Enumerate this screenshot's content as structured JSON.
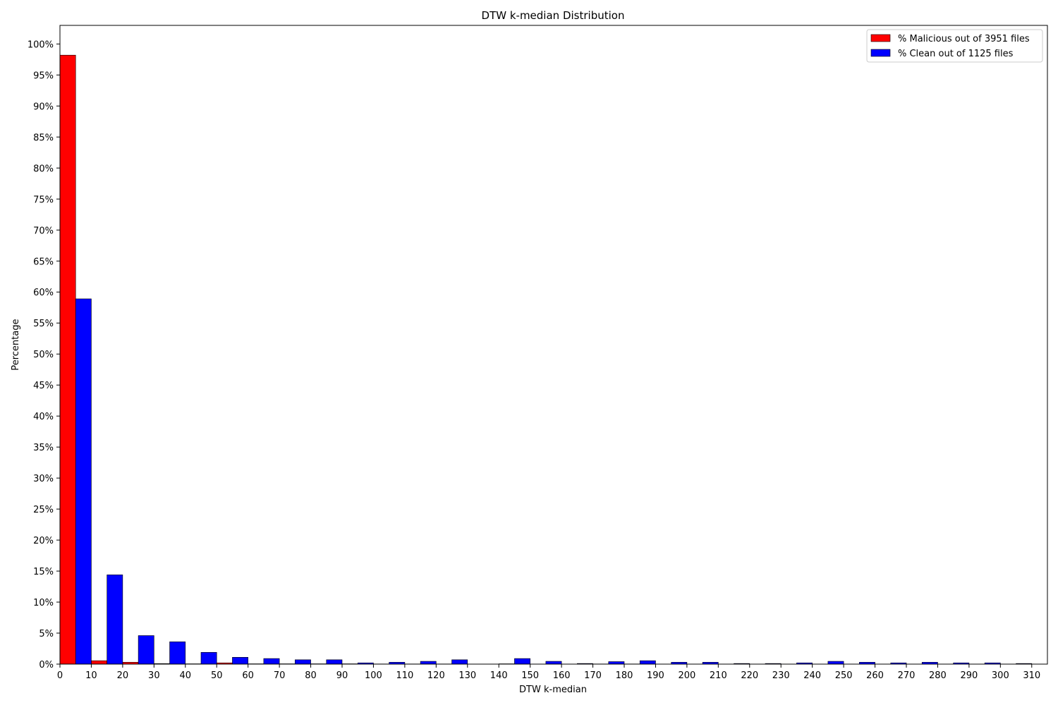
{
  "chart_data": {
    "type": "bar",
    "title": "DTW k-median Distribution",
    "xlabel": "DTW k-median",
    "ylabel": "Percentage",
    "xlim": [
      0,
      315
    ],
    "ylim": [
      0,
      103
    ],
    "x_ticks": [
      0,
      10,
      20,
      30,
      40,
      50,
      60,
      70,
      80,
      90,
      100,
      110,
      120,
      130,
      140,
      150,
      160,
      170,
      180,
      190,
      200,
      210,
      220,
      230,
      240,
      250,
      260,
      270,
      280,
      290,
      300,
      310
    ],
    "y_ticks": [
      0,
      5,
      10,
      15,
      20,
      25,
      30,
      35,
      40,
      45,
      50,
      55,
      60,
      65,
      70,
      75,
      80,
      85,
      90,
      95,
      100
    ],
    "y_tick_suffix": "%",
    "bin_width": 10,
    "bin_starts": [
      0,
      10,
      20,
      30,
      40,
      50,
      60,
      70,
      80,
      90,
      100,
      110,
      120,
      130,
      140,
      150,
      160,
      170,
      180,
      190,
      200,
      210,
      220,
      230,
      240,
      250,
      260,
      270,
      280,
      290,
      300
    ],
    "legend_position": "top-right",
    "grid": false,
    "series": [
      {
        "name": "% Malicious out of 3951 files",
        "color": "#ff0000",
        "values": [
          98.2,
          0.55,
          0.3,
          0.08,
          0.05,
          0.2,
          0.05,
          0.05,
          0.05,
          0.05,
          0.03,
          0.03,
          0.03,
          0.0,
          0.05,
          0.0,
          0.0,
          0.03,
          0.03,
          0.0,
          0.0,
          0.0,
          0.0,
          0.0,
          0.0,
          0.0,
          0.0,
          0.0,
          0.0,
          0.0,
          0.0
        ]
      },
      {
        "name": "% Clean out of 1125 files",
        "color": "#0000ff",
        "values": [
          58.9,
          14.4,
          4.6,
          3.6,
          1.9,
          1.1,
          0.9,
          0.7,
          0.7,
          0.2,
          0.3,
          0.45,
          0.7,
          0.0,
          0.9,
          0.45,
          0.1,
          0.4,
          0.55,
          0.3,
          0.3,
          0.1,
          0.1,
          0.2,
          0.45,
          0.3,
          0.2,
          0.3,
          0.2,
          0.2,
          0.1
        ]
      }
    ]
  }
}
